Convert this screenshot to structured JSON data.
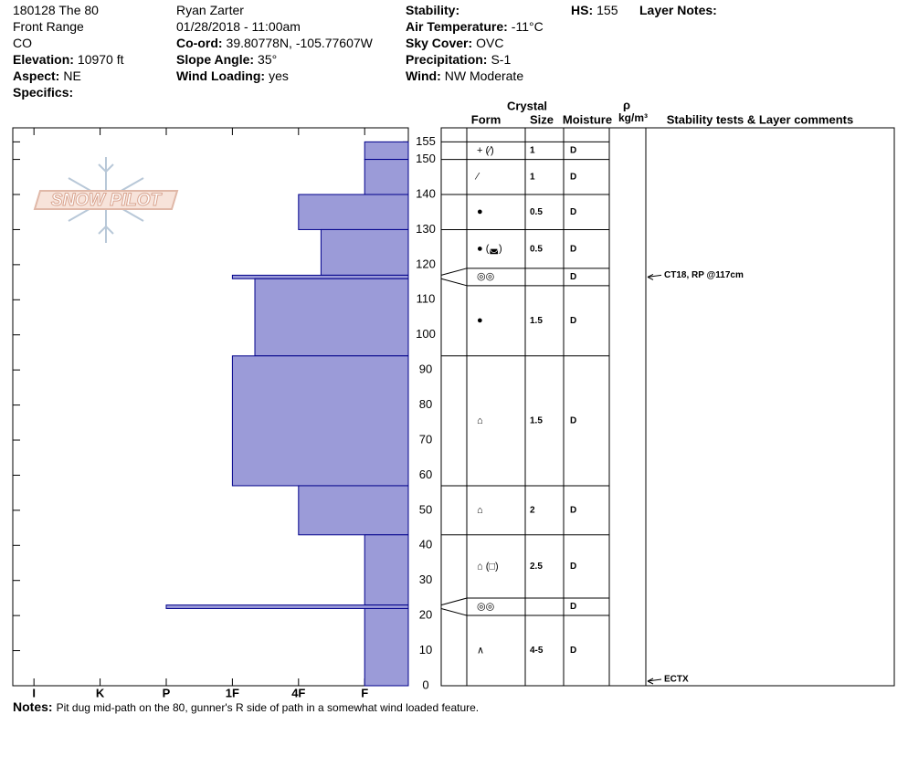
{
  "header": {
    "columns": [
      [
        {
          "value": "180128 The 80"
        },
        {
          "value": "Front Range"
        },
        {
          "value": "CO"
        },
        {
          "label": "Elevation:",
          "value": "10970 ft"
        },
        {
          "label": "Aspect:",
          "value": "NE"
        },
        {
          "label": "Specifics:"
        }
      ],
      [
        {
          "value": "Ryan Zarter"
        },
        {
          "value": "01/28/2018 - 11:00am"
        },
        {
          "label": "Co-ord:",
          "value": "39.80778N, -105.77607W"
        },
        {
          "label": "Slope Angle:",
          "value": "35°"
        },
        {
          "label": "Wind Loading:",
          "value": "yes"
        }
      ],
      [
        {
          "label": "Stability:"
        },
        {
          "label": "Air Temperature:",
          "value": "-11°C"
        },
        {
          "label": "Sky Cover:",
          "value": "OVC"
        },
        {
          "label": "Precipitation:",
          "value": "S-1"
        },
        {
          "label": "Wind:",
          "value": "NW Moderate"
        }
      ]
    ],
    "hs": {
      "label": "HS:",
      "value": 155
    },
    "layer_notes": {
      "label": "Layer Notes:"
    }
  },
  "logo": "SNOW PILOT",
  "chart_data": {
    "type": "bar",
    "color": "#9b9bd8",
    "ylim": [
      0,
      159
    ],
    "yticks": [
      0,
      10,
      20,
      30,
      40,
      50,
      60,
      70,
      80,
      90,
      100,
      110,
      120,
      130,
      140,
      150,
      155
    ],
    "xlim": [
      6.32,
      0.34
    ],
    "xticks": [
      {
        "value": 6,
        "label": "I"
      },
      {
        "value": 5,
        "label": "K"
      },
      {
        "value": 4,
        "label": "P"
      },
      {
        "value": 3,
        "label": "1F"
      },
      {
        "value": 2,
        "label": "4F"
      },
      {
        "value": 1,
        "label": "F"
      }
    ],
    "top": [
      155,
      150,
      140,
      130,
      117,
      116,
      94,
      57,
      43,
      23,
      22
    ],
    "bottom": [
      150,
      140,
      130,
      117,
      116,
      94,
      57,
      43,
      23,
      22,
      0
    ],
    "values": [
      1,
      1,
      2,
      1.66,
      3,
      2.66,
      3,
      2,
      1,
      4,
      1
    ]
  },
  "table": {
    "headers": {
      "crystal": "Crystal",
      "form": "Form",
      "size": "Size",
      "moisture": "Moisture",
      "rho": "ρ",
      "density_unit": "kg/m³",
      "comments": "Stability tests & Layer comments"
    },
    "rows": [
      {
        "form": "+ (⁄)",
        "size": "1",
        "moisture": "D"
      },
      {
        "form": "⁄",
        "size": "1",
        "moisture": "D"
      },
      {
        "form": "●",
        "size": "0.5",
        "moisture": "D"
      },
      {
        "form": "● (◛)",
        "size": "0.5",
        "moisture": "D"
      },
      {
        "form": "◎◎",
        "moisture": "D"
      },
      {
        "form": "●",
        "size": "1.5",
        "moisture": "D"
      },
      {
        "form": "⌂",
        "size": "1.5",
        "moisture": "D"
      },
      {
        "form": "⌂",
        "size": "2",
        "moisture": "D"
      },
      {
        "form": "⌂ (□)",
        "size": "2.5",
        "moisture": "D"
      },
      {
        "form": "◎◎",
        "moisture": "D"
      },
      {
        "form": "∧",
        "size": "4-5",
        "moisture": "D"
      }
    ]
  },
  "tests": [
    {
      "label": "CT18, RP @117cm",
      "depth": 117
    },
    {
      "label": "ECTX",
      "depth": 0
    }
  ],
  "notes": {
    "label": "Notes:",
    "text": "Pit dug mid-path on the 80, gunner's R side of path in a somewhat wind loaded feature."
  }
}
